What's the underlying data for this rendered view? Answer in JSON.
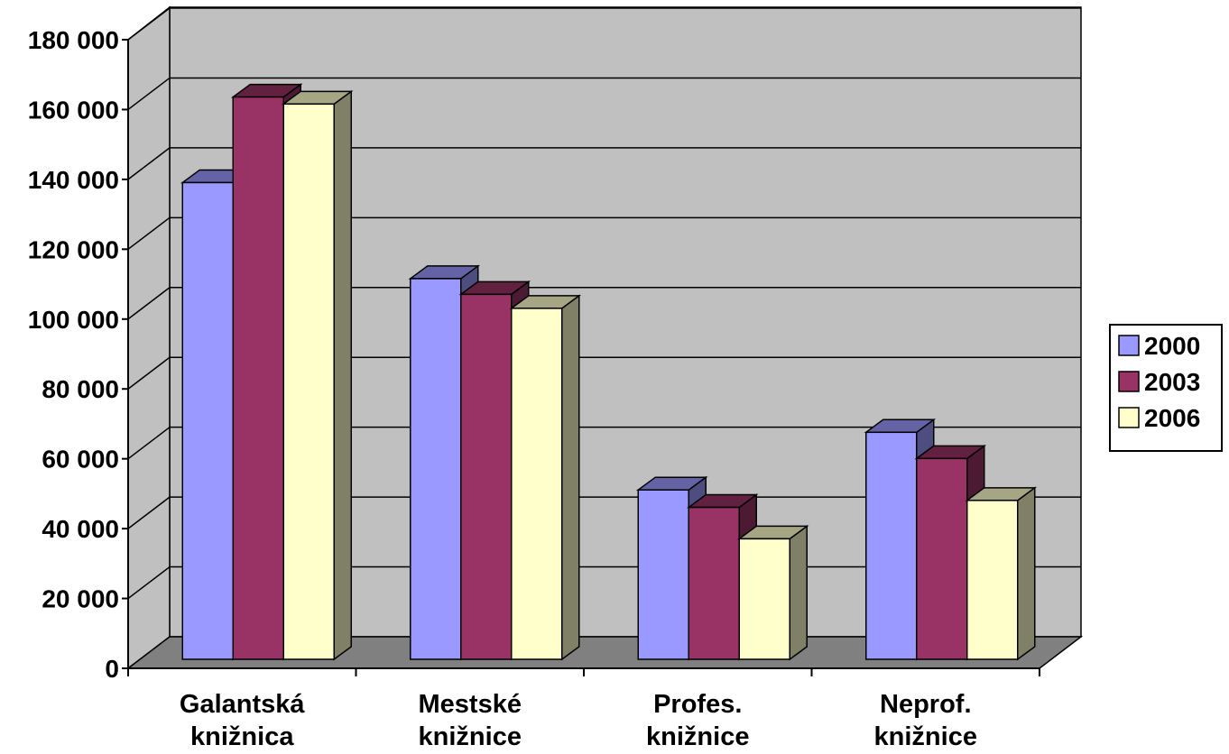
{
  "chart_data": {
    "type": "bar",
    "style": "3d-clustered-column",
    "categories": [
      [
        "Galantská",
        "knižnica"
      ],
      [
        "Mestské",
        "knižnice"
      ],
      [
        "Profes.",
        "knižnice"
      ],
      [
        "Neprof.",
        "knižnice"
      ]
    ],
    "series": [
      {
        "name": "2000",
        "color": "#9999ff",
        "values": [
          136500,
          109000,
          48500,
          65000
        ]
      },
      {
        "name": "2003",
        "color": "#993366",
        "values": [
          161000,
          104500,
          43500,
          57500
        ]
      },
      {
        "name": "2006",
        "color": "#ffffcc",
        "values": [
          159000,
          100500,
          34500,
          45500
        ]
      }
    ],
    "y_ticks": [
      "0",
      "20 000",
      "40 000",
      "60 000",
      "80 000",
      "100 000",
      "120 000",
      "140 000",
      "160 000",
      "180 000"
    ],
    "ylim": [
      0,
      180000
    ],
    "grid": true,
    "legend_position": "right",
    "wall_color": "#c0c0c0",
    "floor_color": "#808080"
  }
}
